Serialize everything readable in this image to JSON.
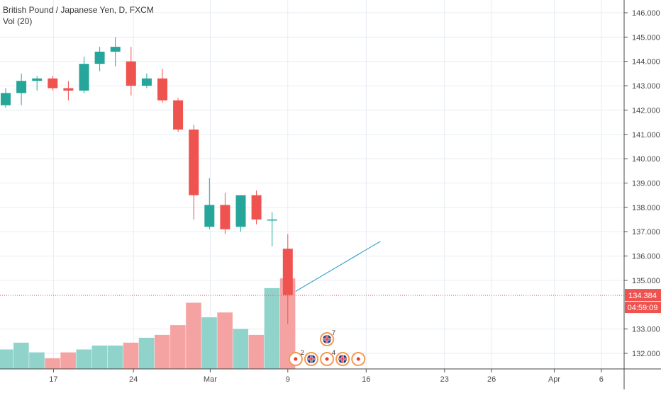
{
  "chart_data": {
    "type": "candlestick",
    "title": "British Pound / Japanese Yen, D, FXCM",
    "volume_label": "Vol (20)",
    "y_ticks": [
      "146.000",
      "145.000",
      "144.000",
      "143.000",
      "142.000",
      "141.000",
      "140.000",
      "139.000",
      "138.000",
      "137.000",
      "136.000",
      "135.000",
      "133.000",
      "132.000"
    ],
    "x_ticks": [
      "17",
      "24",
      "Mar",
      "9",
      "16",
      "23",
      "26",
      "Apr",
      "6"
    ],
    "current_price": "134.384",
    "countdown": "04:59:09",
    "ylim": [
      131.4,
      146.4
    ],
    "grid": true,
    "candles": [
      {
        "o": 142.2,
        "h": 142.9,
        "l": 142.1,
        "c": 142.7
      },
      {
        "o": 142.7,
        "h": 143.5,
        "l": 142.2,
        "c": 143.2
      },
      {
        "o": 143.2,
        "h": 143.4,
        "l": 142.8,
        "c": 143.3
      },
      {
        "o": 143.3,
        "h": 143.4,
        "l": 142.8,
        "c": 142.9
      },
      {
        "o": 142.9,
        "h": 143.2,
        "l": 142.4,
        "c": 142.8
      },
      {
        "o": 142.8,
        "h": 144.2,
        "l": 142.7,
        "c": 143.9
      },
      {
        "o": 143.9,
        "h": 144.6,
        "l": 143.6,
        "c": 144.4
      },
      {
        "o": 144.4,
        "h": 145.0,
        "l": 143.8,
        "c": 144.6
      },
      {
        "o": 144.0,
        "h": 144.6,
        "l": 142.6,
        "c": 143.0
      },
      {
        "o": 143.0,
        "h": 143.5,
        "l": 142.9,
        "c": 143.3
      },
      {
        "o": 143.3,
        "h": 143.7,
        "l": 142.3,
        "c": 142.4
      },
      {
        "o": 142.4,
        "h": 142.5,
        "l": 141.1,
        "c": 141.2
      },
      {
        "o": 141.2,
        "h": 141.4,
        "l": 137.5,
        "c": 138.5
      },
      {
        "o": 137.2,
        "h": 139.2,
        "l": 137.1,
        "c": 138.1
      },
      {
        "o": 138.1,
        "h": 138.6,
        "l": 136.9,
        "c": 137.1
      },
      {
        "o": 137.2,
        "h": 138.5,
        "l": 137.0,
        "c": 138.5
      },
      {
        "o": 138.5,
        "h": 138.7,
        "l": 137.3,
        "c": 137.5
      },
      {
        "o": 137.5,
        "h": 137.8,
        "l": 136.4,
        "c": 137.5
      },
      {
        "o": 136.3,
        "h": 136.9,
        "l": 133.2,
        "c": 134.4
      }
    ],
    "volume": [
      1.0,
      1.35,
      0.85,
      0.55,
      0.85,
      1.0,
      1.2,
      1.2,
      1.35,
      1.6,
      1.75,
      2.25,
      3.4,
      2.65,
      2.9,
      2.05,
      1.75,
      4.15,
      4.65
    ],
    "trendline": {
      "from": {
        "bar": 18.5,
        "price": 134.55
      },
      "to": {
        "bar": 23.9,
        "price": 136.6
      }
    },
    "events": [
      {
        "type": "dot",
        "bar": 18.5,
        "row": 0,
        "count": "2"
      },
      {
        "type": "flag",
        "bar": 19.5,
        "row": 0
      },
      {
        "type": "dot",
        "bar": 20.5,
        "row": 0,
        "count": "4"
      },
      {
        "type": "flag",
        "bar": 21.5,
        "row": 0
      },
      {
        "type": "dot",
        "bar": 22.5,
        "row": 0
      },
      {
        "type": "flag",
        "bar": 20.5,
        "row": 1,
        "count": "7"
      }
    ],
    "colors": {
      "up": "#26a69a",
      "down": "#ef5350",
      "volume_up": "#8fd3cb",
      "volume_down": "#f5a3a2",
      "grid": "#e6edf3",
      "price_line": "#ef5350",
      "trendline": "#2196c9",
      "axis_text": "#4a4a4a",
      "event": "#f49a52"
    }
  }
}
